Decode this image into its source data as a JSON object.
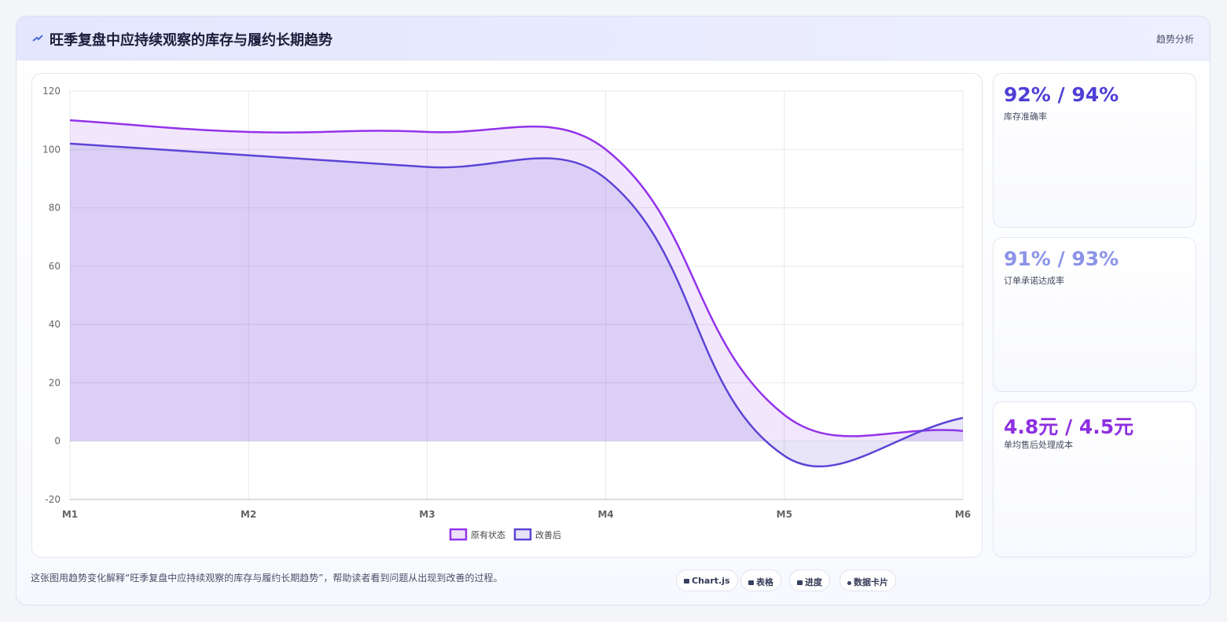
{
  "header": {
    "title": "旺季复盘中应持续观察的库存与履约长期趋势",
    "tag": "趋势分析"
  },
  "chart_data": {
    "type": "line",
    "categories": [
      "M1",
      "M2",
      "M3",
      "M4",
      "M5",
      "M6"
    ],
    "series": [
      {
        "name": "原有状态",
        "color": "#9333ea",
        "values": [
          110,
          106,
          106,
          100,
          9,
          3.5
        ]
      },
      {
        "name": "改善后",
        "color": "#5b45d6",
        "values": [
          102,
          98,
          94,
          90,
          -5,
          8
        ]
      }
    ],
    "ylim": [
      -20,
      120
    ],
    "yticks": [
      -20,
      0,
      20,
      40,
      60,
      80,
      100,
      120
    ],
    "grid": true,
    "legend": "bottom",
    "fill": true
  },
  "cards": [
    {
      "value": "92% / 94%",
      "label": "库存准确率",
      "color": "#4f3fd6"
    },
    {
      "value": "91% / 93%",
      "label": "订单承诺达成率",
      "color": "#8b94e8"
    },
    {
      "value": "4.8元 / 4.5元",
      "label": "单均售后处理成本",
      "color": "#8e2fe0"
    }
  ],
  "footer": {
    "caption": "这张图用趋势变化解释“旺季复盘中应持续观察的库存与履约长期趋势”，帮助读者看到问题从出现到改善的过程。",
    "buttons": [
      "Chart.js",
      "表格",
      "进度",
      "数据卡片"
    ]
  }
}
